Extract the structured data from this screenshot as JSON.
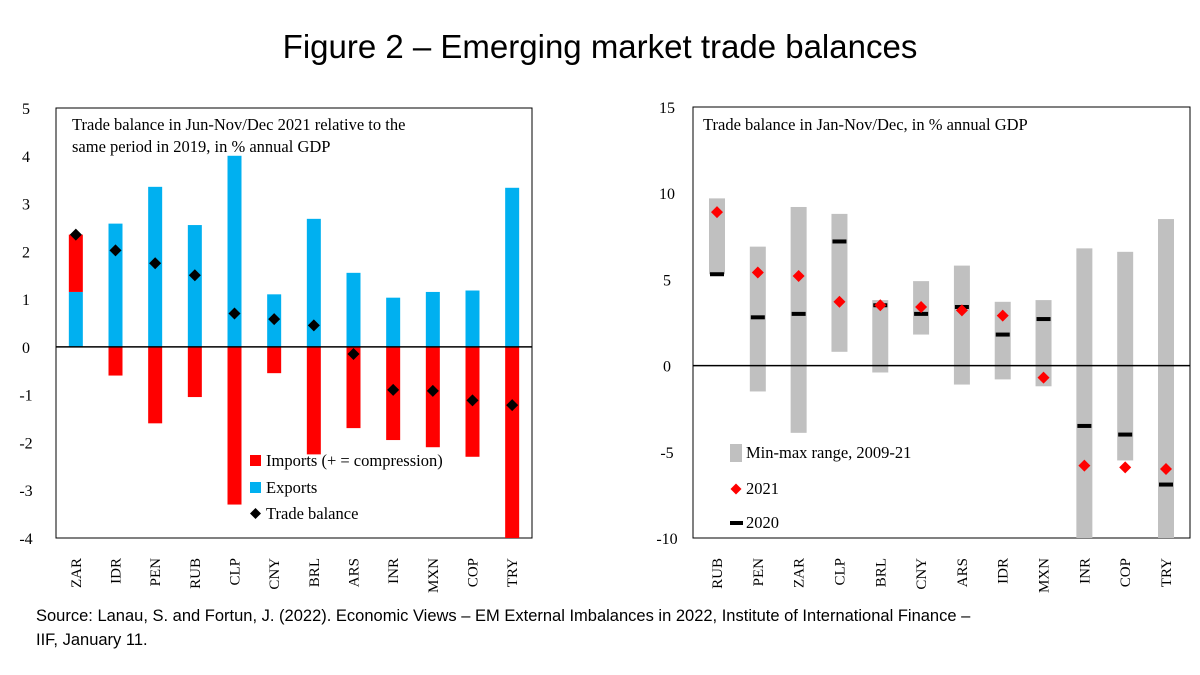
{
  "figure": {
    "title": "Figure 2 – Emerging market trade balances",
    "source_line1": "Source: Lanau, S. and Fortun, J. (2022).  Economic Views – EM External Imbalances in 2022, Institute of International Finance –",
    "source_line2": "IIF, January 11."
  },
  "colors": {
    "imports": "#ff0000",
    "exports": "#00b0f0",
    "balance": "#000000",
    "range": "#c0c0c0",
    "marker2021": "#ff0000",
    "marker2020": "#000000"
  },
  "chart_data": [
    {
      "type": "bar",
      "title": "Trade balance in Jun-Nov/Dec 2021 relative to the same period in 2019, in % annual GDP",
      "title_lines": [
        "Trade balance in Jun-Nov/Dec 2021 relative to the",
        "same period in 2019, in % annual GDP"
      ],
      "ylim": [
        -4,
        5
      ],
      "yticks": [
        -4,
        -3,
        -2,
        -1,
        0,
        1,
        2,
        3,
        4,
        5
      ],
      "categories": [
        "ZAR",
        "IDR",
        "PEN",
        "RUB",
        "CLP",
        "CNY",
        "BRL",
        "ARS",
        "INR",
        "MXN",
        "COP",
        "TRY"
      ],
      "series": [
        {
          "name": "Imports (+ = compression)",
          "values": [
            1.2,
            -0.6,
            -1.6,
            -1.05,
            -3.3,
            -0.55,
            -2.25,
            -1.7,
            -1.95,
            -2.1,
            -2.3,
            -4.1
          ]
        },
        {
          "name": "Exports",
          "values": [
            1.15,
            2.58,
            3.35,
            2.55,
            4.0,
            1.1,
            2.68,
            1.55,
            1.03,
            1.15,
            1.18,
            3.33
          ]
        },
        {
          "name": "Trade balance",
          "values": [
            2.35,
            2.02,
            1.75,
            1.5,
            0.7,
            0.58,
            0.45,
            -0.15,
            -0.9,
            -0.92,
            -1.12,
            -1.22
          ]
        }
      ],
      "legend": [
        "Imports (+ = compression)",
        "Exports",
        "Trade balance"
      ],
      "legend_position": "bottom-right"
    },
    {
      "type": "range",
      "title": "Trade balance in Jan-Nov/Dec, in % annual GDP",
      "ylim": [
        -10,
        15
      ],
      "yticks": [
        -10,
        -5,
        0,
        5,
        10,
        15
      ],
      "categories": [
        "RUB",
        "PEN",
        "ZAR",
        "CLP",
        "BRL",
        "CNY",
        "ARS",
        "IDR",
        "MXN",
        "INR",
        "COP",
        "TRY"
      ],
      "series": [
        {
          "name": "Min-max range, 2009-21",
          "min": [
            5.3,
            -1.5,
            -3.9,
            0.8,
            -0.4,
            1.8,
            -1.1,
            -0.8,
            -1.2,
            -10.2,
            -5.5,
            -10.2
          ],
          "max": [
            9.7,
            6.9,
            9.2,
            8.8,
            3.8,
            4.9,
            5.8,
            3.7,
            3.8,
            6.8,
            6.6,
            8.5
          ]
        },
        {
          "name": "2021",
          "values": [
            8.9,
            5.4,
            5.2,
            3.7,
            3.5,
            3.4,
            3.2,
            2.9,
            -0.7,
            -5.8,
            -5.9,
            -6.0
          ]
        },
        {
          "name": "2020",
          "values": [
            5.3,
            2.8,
            3.0,
            7.2,
            3.5,
            3.0,
            3.4,
            1.8,
            2.7,
            -3.5,
            -4.0,
            -6.9
          ]
        }
      ],
      "legend": [
        "Min-max range, 2009-21",
        "2021",
        "2020"
      ],
      "legend_position": "bottom-left"
    }
  ]
}
